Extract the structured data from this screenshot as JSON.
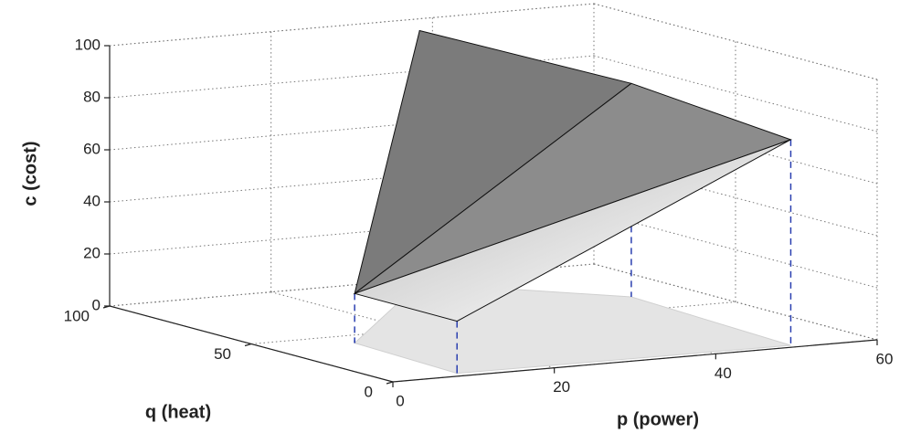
{
  "chart_data": {
    "type": "surface3d",
    "xlabel": "p (power)",
    "ylabel": "q (heat)",
    "zlabel": "c (cost)",
    "x": [
      10,
      9,
      37,
      52,
      50
    ],
    "y": [
      42,
      3,
      96,
      64,
      2
    ],
    "z": [
      19,
      20,
      97,
      82,
      79
    ],
    "xlim": [
      0,
      60
    ],
    "ylim": [
      0,
      100
    ],
    "zlim": [
      0,
      100
    ],
    "xticks": [
      0,
      20,
      40,
      60
    ],
    "yticks": [
      0,
      50,
      100
    ],
    "zticks": [
      0,
      20,
      40,
      60,
      80,
      100
    ],
    "grid": true,
    "color": "#8c8c8c"
  }
}
